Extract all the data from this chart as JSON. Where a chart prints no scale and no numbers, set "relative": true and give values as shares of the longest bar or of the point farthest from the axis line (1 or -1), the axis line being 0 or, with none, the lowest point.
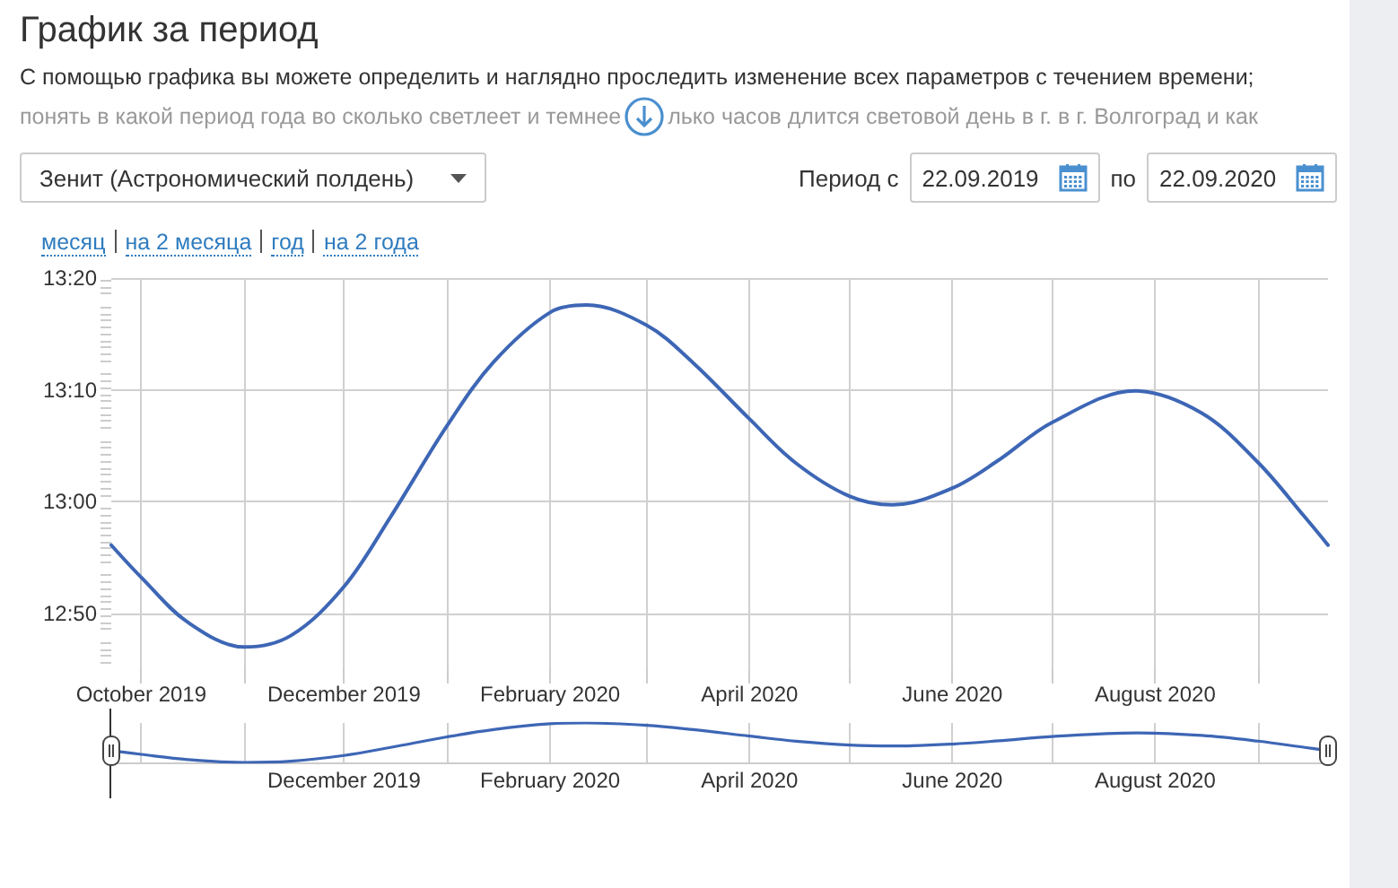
{
  "chart_data": [
    {
      "type": "line",
      "title": "График за период",
      "subtitle": "С помощью графика вы можете определить и наглядно проследить изменение всех параметров с течением времени;",
      "annotations": [
        "понять в какой период года во сколько светлеет и темнее",
        "лько часов длится световой день в г. в г. Волгоград и как",
        "Зенит (Астрономический полдень)",
        "Период с",
        "22.09.2019",
        "по",
        "22.09.2020",
        "месяц",
        "на 2 месяца",
        "год",
        "на 2 года"
      ],
      "x": [
        "2019-09-22",
        "2019-10-01",
        "2019-10-15",
        "2019-11-01",
        "2019-11-15",
        "2019-12-01",
        "2019-12-15",
        "2020-01-01",
        "2020-01-15",
        "2020-02-01",
        "2020-02-12",
        "2020-03-01",
        "2020-03-15",
        "2020-04-01",
        "2020-04-15",
        "2020-05-01",
        "2020-05-14",
        "2020-06-01",
        "2020-06-15",
        "2020-07-01",
        "2020-07-26",
        "2020-08-15",
        "2020-09-01",
        "2020-09-15",
        "2020-09-22"
      ],
      "series": [
        {
          "color": "#3d66b5",
          "values": [
            12.935,
            12.887,
            12.82,
            12.783,
            12.8,
            12.873,
            12.977,
            13.113,
            13.208,
            13.282,
            13.293,
            13.263,
            13.207,
            13.123,
            13.057,
            13.008,
            12.995,
            13.02,
            13.062,
            13.118,
            13.165,
            13.132,
            13.058,
            12.977,
            12.935
          ]
        }
      ],
      "xlim": [
        "2019-09-22",
        "2020-09-22"
      ],
      "xticks": [
        {
          "value": "2019-10-01",
          "label": "October 2019"
        },
        {
          "value": "2019-11-01",
          "label": null
        },
        {
          "value": "2019-12-01",
          "label": "December 2019"
        },
        {
          "value": "2020-01-01",
          "label": null
        },
        {
          "value": "2020-02-01",
          "label": "February 2020"
        },
        {
          "value": "2020-03-01",
          "label": null
        },
        {
          "value": "2020-04-01",
          "label": "April 2020"
        },
        {
          "value": "2020-05-01",
          "label": null
        },
        {
          "value": "2020-06-01",
          "label": "June 2020"
        },
        {
          "value": "2020-07-01",
          "label": null
        },
        {
          "value": "2020-08-01",
          "label": "August 2020"
        },
        {
          "value": "2020-09-01",
          "label": null
        }
      ],
      "ylim": [
        12.75,
        13.3333
      ],
      "yticks": [
        {
          "value": 12.8333,
          "label": "12:50"
        },
        {
          "value": 13,
          "label": "13:00"
        },
        {
          "value": 13.1667,
          "label": "13:10"
        },
        {
          "value": 13.3333,
          "label": "13:20"
        }
      ],
      "grid": true,
      "marker": "none",
      "line_style": "solid"
    },
    {
      "type": "line",
      "relative": true,
      "x": [
        "2019-09-22",
        "2019-10-01",
        "2019-10-15",
        "2019-11-01",
        "2019-11-15",
        "2019-12-01",
        "2019-12-15",
        "2020-01-01",
        "2020-01-15",
        "2020-02-01",
        "2020-02-12",
        "2020-03-01",
        "2020-03-15",
        "2020-04-01",
        "2020-04-15",
        "2020-05-01",
        "2020-05-14",
        "2020-06-01",
        "2020-06-15",
        "2020-07-01",
        "2020-07-26",
        "2020-08-15",
        "2020-09-01",
        "2020-09-15",
        "2020-09-22"
      ],
      "series": [
        {
          "color": "#3d66b5",
          "values": [
            0.298,
            0.204,
            0.073,
            0,
            0.033,
            0.176,
            0.38,
            0.647,
            0.833,
            0.978,
            1,
            0.941,
            0.831,
            0.667,
            0.537,
            0.441,
            0.416,
            0.465,
            0.547,
            0.657,
            0.749,
            0.684,
            0.539,
            0.38,
            0.298
          ]
        }
      ],
      "xlim": [
        "2019-09-22",
        "2020-09-22"
      ],
      "xticks": [
        {
          "value": "2019-10-01",
          "label": null
        },
        {
          "value": "2019-11-01",
          "label": null
        },
        {
          "value": "2019-12-01",
          "label": "December 2019"
        },
        {
          "value": "2020-01-01",
          "label": null
        },
        {
          "value": "2020-02-01",
          "label": "February 2020"
        },
        {
          "value": "2020-03-01",
          "label": null
        },
        {
          "value": "2020-04-01",
          "label": "April 2020"
        },
        {
          "value": "2020-05-01",
          "label": null
        },
        {
          "value": "2020-06-01",
          "label": "June 2020"
        },
        {
          "value": "2020-07-01",
          "label": null
        },
        {
          "value": "2020-08-01",
          "label": "August 2020"
        },
        {
          "value": "2020-09-01",
          "label": null
        }
      ],
      "grid": "x",
      "marker": "none",
      "line_style": "solid"
    }
  ]
}
